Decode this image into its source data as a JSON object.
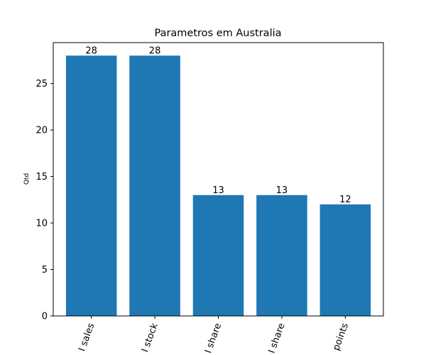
{
  "chart_data": {
    "type": "bar",
    "title": "Parametros em Australia",
    "xlabel": "",
    "ylabel": "Qtd",
    "categories": [
      "I sales",
      "I stock",
      "I share",
      "I share",
      "points"
    ],
    "values": [
      28,
      28,
      13,
      13,
      12
    ],
    "ylim": [
      0,
      28
    ],
    "yticks": [
      0,
      5,
      10,
      15,
      20,
      25
    ],
    "bar_color": "#1f77b4",
    "grid": false,
    "x_tick_rotation_deg": 70
  }
}
